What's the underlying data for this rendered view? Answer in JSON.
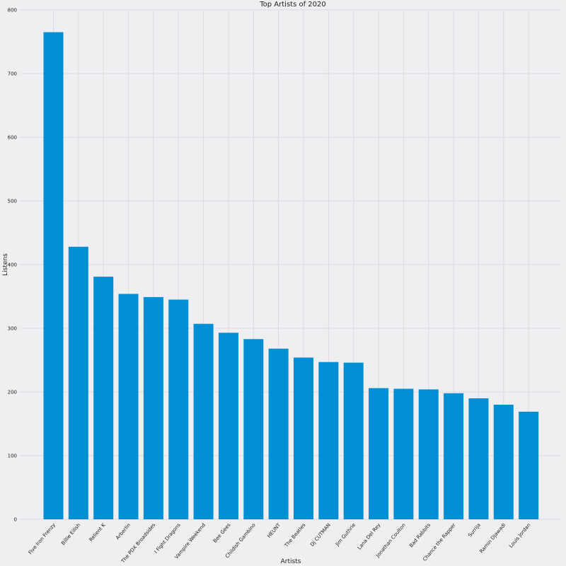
{
  "chart_data": {
    "type": "bar",
    "title": "Top Artists of 2020",
    "xlabel": "Artists",
    "ylabel": "Listens",
    "ylim": [
      0,
      800
    ],
    "yticks": [
      0,
      100,
      200,
      300,
      400,
      500,
      600,
      700,
      800
    ],
    "grid": true,
    "bar_color": "#008fd5",
    "background_color": "#efeef0",
    "categories": [
      "Five Iron Frenzy",
      "Billie Eilish",
      "Relient K",
      "Arberlin",
      "The PDX Broadsides",
      "I Fight Dragons",
      "Vampire Weekend",
      "Bee Gees",
      "Childish Gambino",
      "HEUNT",
      "The Beatles",
      "Dj CUTMAN",
      "Jim Guthrie",
      "Lana Del Rey",
      "Jonathan Coulton",
      "Bad Rabbits",
      "Chance the Rapper",
      "Surrija",
      "Ramin Djawadi",
      "Louis Jordan"
    ],
    "values": [
      765,
      428,
      381,
      354,
      349,
      345,
      307,
      293,
      283,
      268,
      254,
      247,
      246,
      206,
      205,
      204,
      198,
      190,
      180,
      169
    ]
  }
}
